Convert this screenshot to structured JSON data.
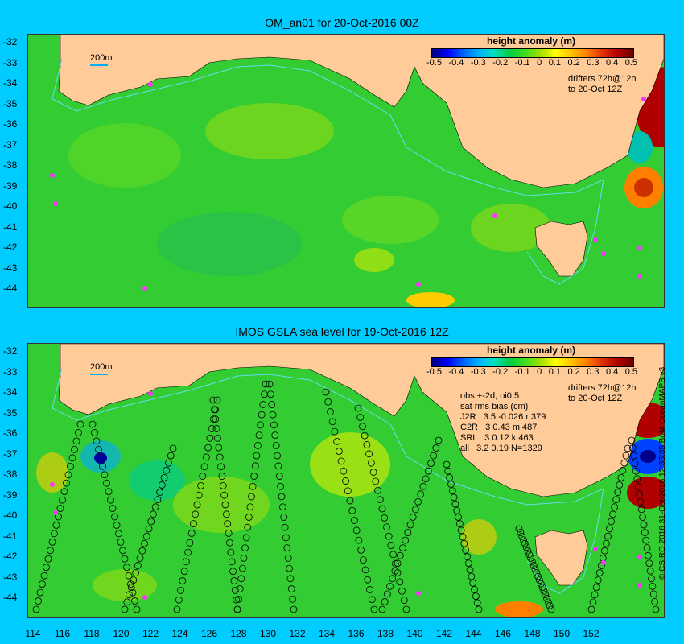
{
  "panels": {
    "top": {
      "title": "OM_an01 for 20-Oct-2016 00Z",
      "scale_label": "200m",
      "colorbar_title": "height anomaly (m)",
      "drifters_note": "drifters 72h@12h\nto 20-Oct 12Z"
    },
    "bottom": {
      "title": "IMOS GSLA sea level  for 19-Oct-2016 12Z",
      "scale_label": "200m",
      "colorbar_title": "height anomaly (m)",
      "drifters_note": "drifters 72h@12h\nto 20-Oct 12Z",
      "stats_note": "obs +-2d, oi0.5\nsat rms bias (cm)\nJ2R   3.5 -0.026 r 379\nC2R   3 0.43 m 487\nSRL   3 0.12 k 463\nall   3.2 0.19 N=1329"
    }
  },
  "colorbar_ticks": [
    "-0.5",
    "-0.4",
    "-0.3",
    "-0.2",
    "-0.1",
    "0",
    "0.1",
    "0.2",
    "0.3",
    "0.4",
    "0.5"
  ],
  "latitude_ticks": [
    "-32",
    "-33",
    "-34",
    "-35",
    "-36",
    "-37",
    "-38",
    "-39",
    "-40",
    "-41",
    "-42",
    "-43",
    "-44"
  ],
  "longitude_ticks": [
    "114",
    "116",
    "118",
    "120",
    "122",
    "124",
    "126",
    "128",
    "130",
    "132",
    "134",
    "136",
    "138",
    "140",
    "142",
    "144",
    "146",
    "148",
    "150",
    "152"
  ],
  "copyright": "© CSIRO 2016  31-Oct-2016 12:35:35 BoM OceanMAPS v3",
  "colors": {
    "background": "#00ccff",
    "land": "#ffcc99",
    "ocean": "#33cc33",
    "drifters": "#ff33ff",
    "isobath": "#66ddee"
  }
}
